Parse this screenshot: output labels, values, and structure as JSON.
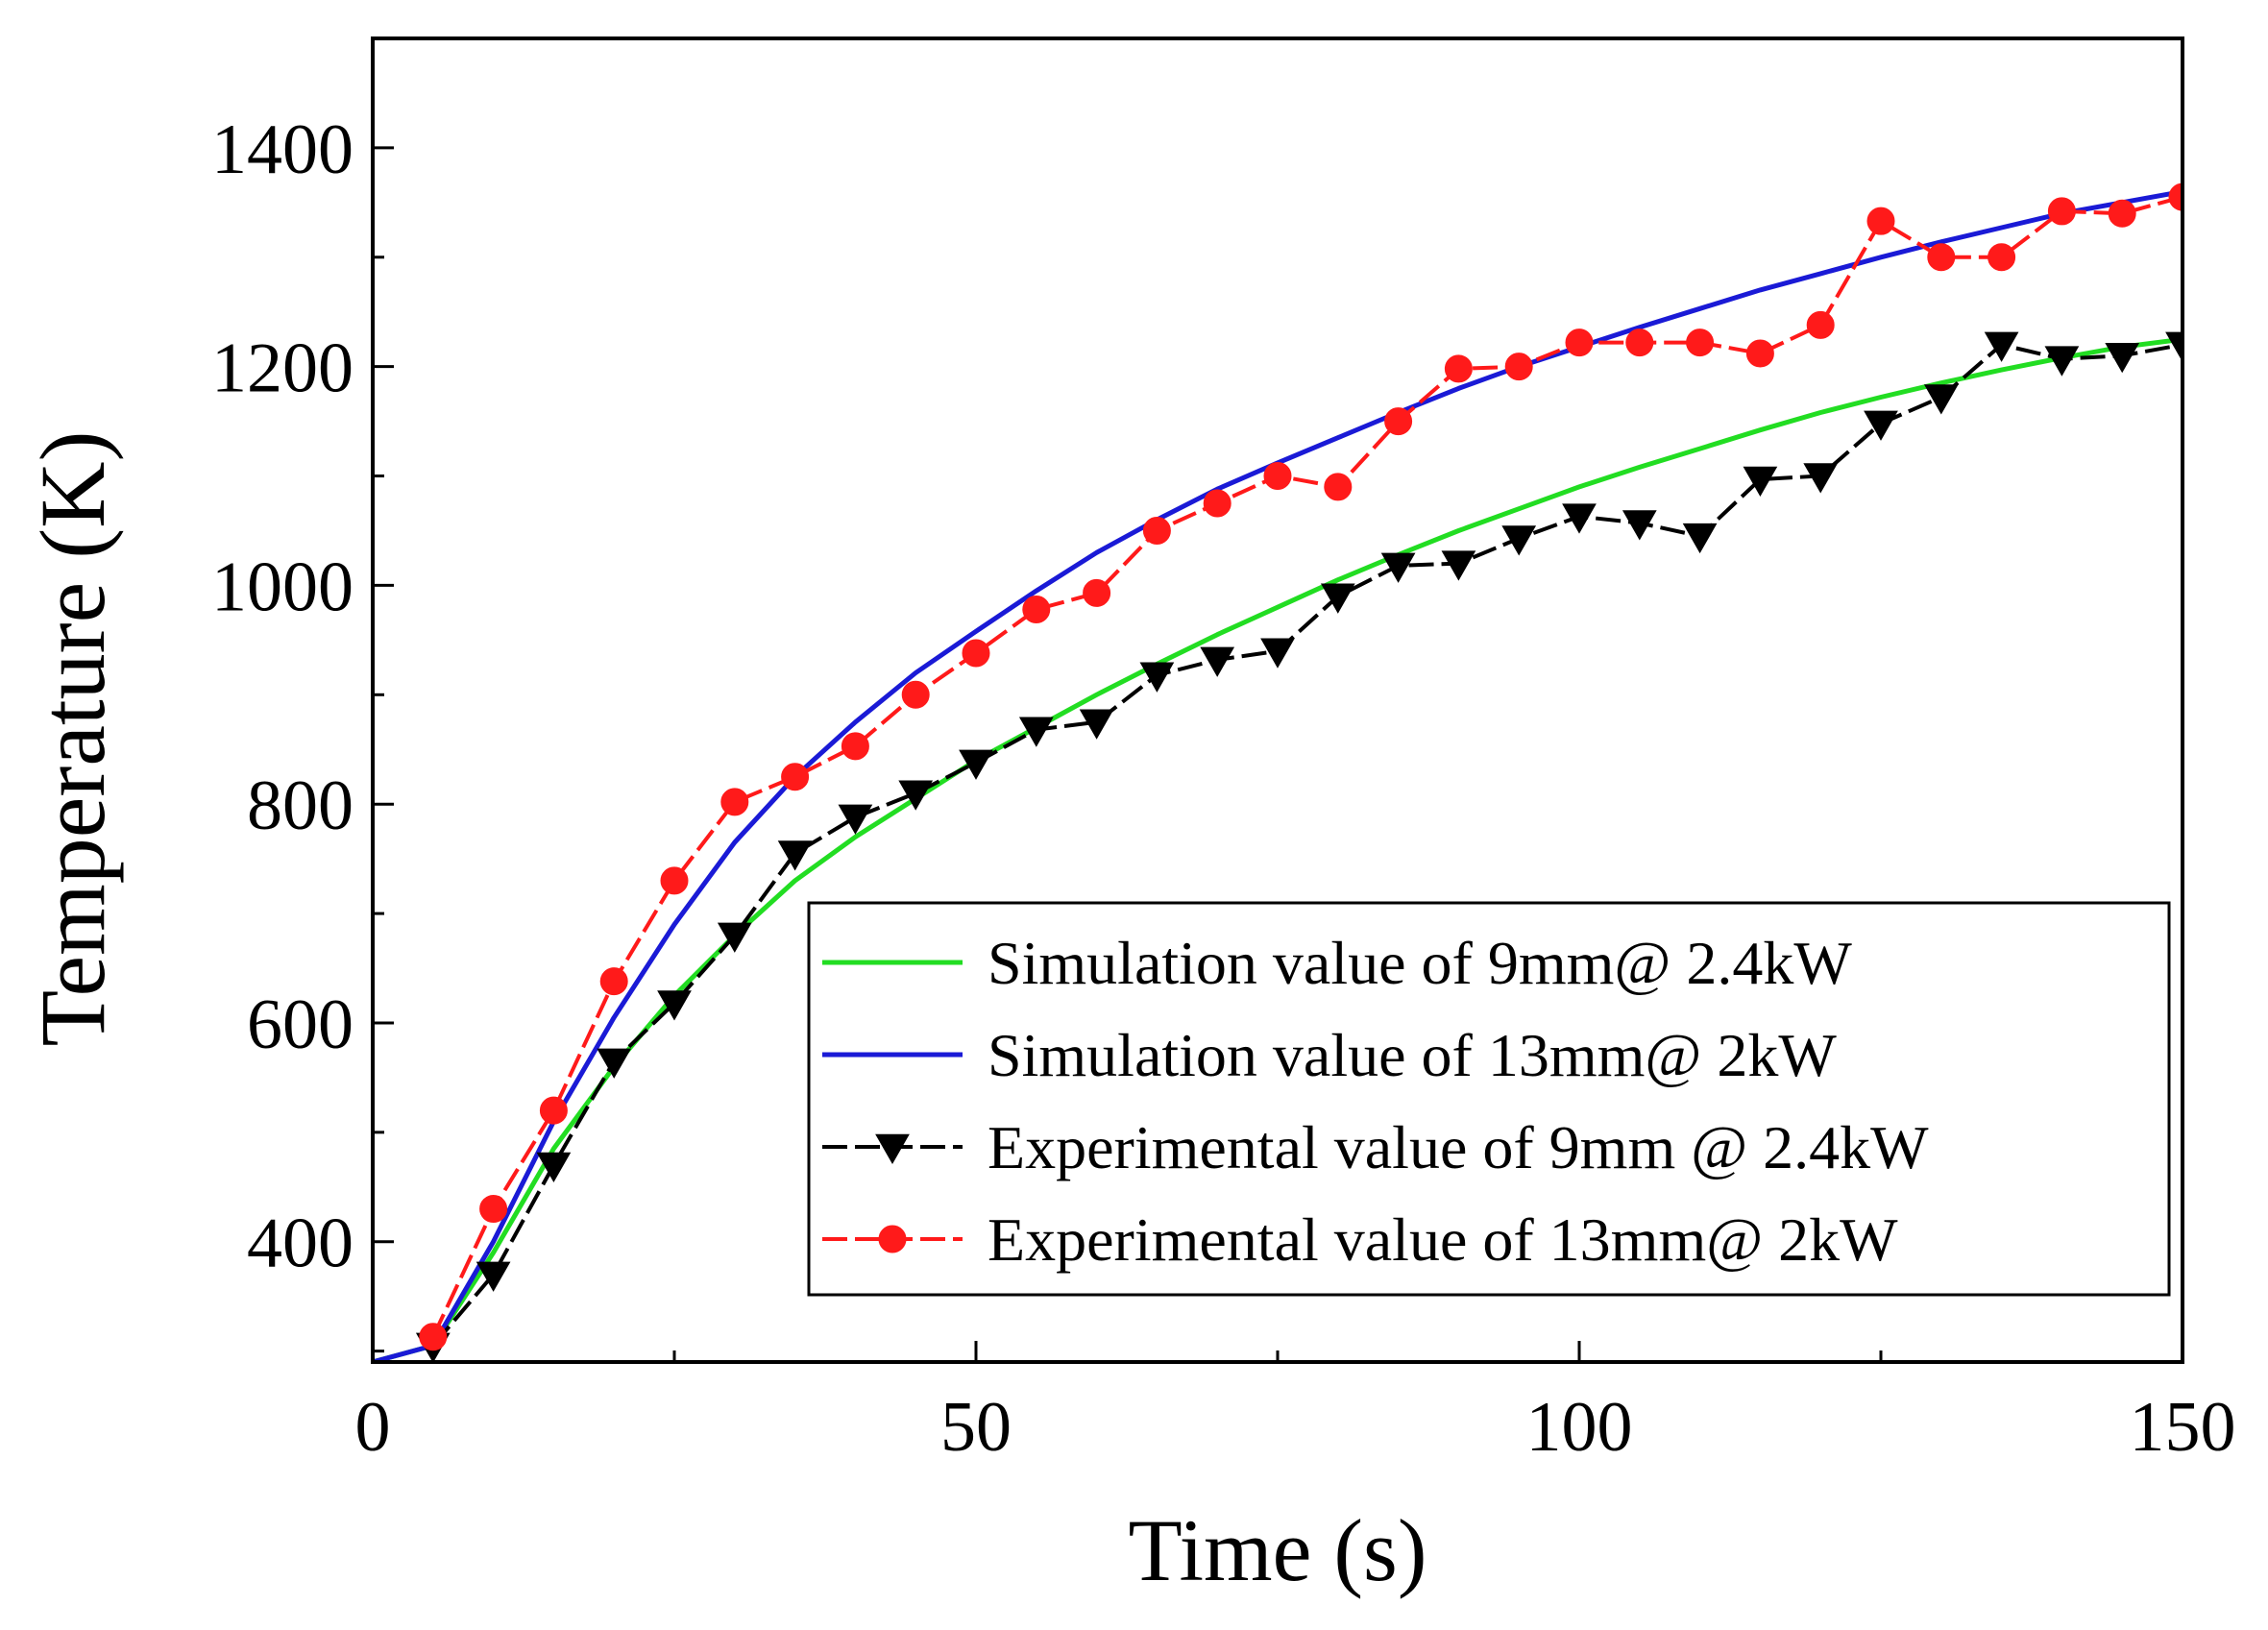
{
  "chart_data": {
    "type": "line",
    "title": "",
    "xlabel": "Time (s)",
    "ylabel": "Temperature (K)",
    "xlim": [
      0,
      150
    ],
    "ylim": [
      290,
      1500
    ],
    "xticks": [
      0,
      50,
      100,
      150
    ],
    "yticks": [
      400,
      600,
      800,
      1000,
      1200,
      1400
    ],
    "legend_position": "bottom-right",
    "series": [
      {
        "name": "Simulation value of 9mm@ 2.4kW",
        "style": "line",
        "color": "#22dd22",
        "x": [
          0,
          5,
          10,
          15,
          20,
          25,
          30,
          35,
          40,
          45,
          50,
          55,
          60,
          65,
          70,
          75,
          80,
          85,
          90,
          95,
          100,
          105,
          110,
          115,
          120,
          125,
          130,
          135,
          140,
          145,
          150
        ],
        "y": [
          290,
          305,
          390,
          485,
          560,
          625,
          680,
          730,
          770,
          805,
          840,
          870,
          900,
          928,
          955,
          980,
          1005,
          1028,
          1050,
          1070,
          1090,
          1108,
          1125,
          1142,
          1158,
          1172,
          1185,
          1197,
          1208,
          1218,
          1225
        ]
      },
      {
        "name": "Simulation value of 13mm@ 2kW",
        "style": "line",
        "color": "#1a1ad6",
        "x": [
          0,
          5,
          10,
          15,
          20,
          25,
          30,
          35,
          40,
          45,
          50,
          55,
          60,
          65,
          70,
          75,
          80,
          85,
          90,
          95,
          100,
          105,
          110,
          115,
          120,
          125,
          130,
          135,
          140,
          145,
          150
        ],
        "y": [
          290,
          305,
          400,
          510,
          605,
          690,
          765,
          825,
          875,
          920,
          958,
          995,
          1030,
          1060,
          1088,
          1112,
          1135,
          1158,
          1180,
          1200,
          1218,
          1236,
          1253,
          1270,
          1285,
          1300,
          1314,
          1327,
          1340,
          1350,
          1360
        ]
      },
      {
        "name": "Experimental value of 9mm @ 2.4kW",
        "style": "line-marker",
        "marker": "triangle-down",
        "color": "#000000",
        "x": [
          5,
          10,
          15,
          20,
          25,
          30,
          35,
          40,
          45,
          50,
          55,
          60,
          65,
          70,
          75,
          80,
          85,
          90,
          95,
          100,
          105,
          110,
          115,
          120,
          125,
          130,
          135,
          140,
          145,
          150
        ],
        "y": [
          305,
          370,
          470,
          565,
          618,
          680,
          755,
          788,
          810,
          838,
          868,
          875,
          918,
          932,
          940,
          990,
          1018,
          1020,
          1043,
          1063,
          1057,
          1045,
          1097,
          1100,
          1148,
          1172,
          1220,
          1207,
          1210,
          1220
        ]
      },
      {
        "name": "Experimental value of 13mm@ 2kW",
        "style": "line-marker",
        "marker": "circle",
        "color": "#ff1a1a",
        "x": [
          5,
          10,
          15,
          20,
          25,
          30,
          35,
          40,
          45,
          50,
          55,
          60,
          65,
          70,
          75,
          80,
          85,
          90,
          95,
          100,
          105,
          110,
          115,
          120,
          125,
          130,
          135,
          140,
          145,
          150
        ],
        "y": [
          313,
          430,
          520,
          638,
          730,
          802,
          825,
          853,
          900,
          938,
          978,
          993,
          1050,
          1075,
          1100,
          1090,
          1150,
          1198,
          1200,
          1222,
          1222,
          1222,
          1212,
          1238,
          1333,
          1300,
          1300,
          1342,
          1340,
          1355
        ]
      }
    ]
  }
}
